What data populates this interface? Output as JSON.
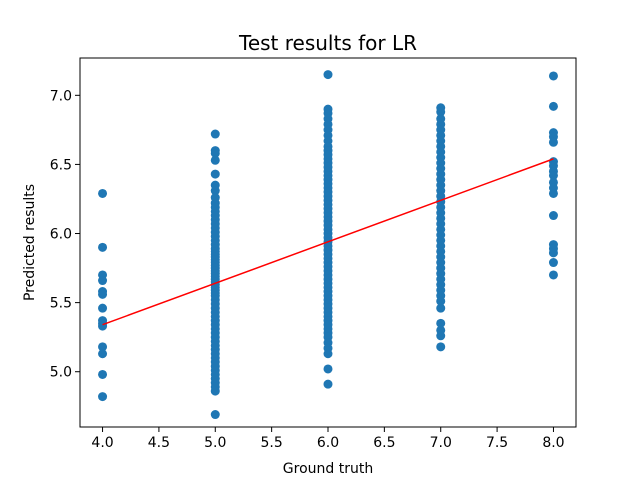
{
  "chart_data": {
    "type": "scatter",
    "title": "Test results for LR",
    "xlabel": "Ground truth",
    "ylabel": "Predicted results",
    "xlim": [
      3.8,
      8.2
    ],
    "ylim": [
      4.6,
      7.27
    ],
    "xticks": [
      "4.0",
      "4.5",
      "5.0",
      "5.5",
      "6.0",
      "6.5",
      "7.0",
      "7.5",
      "8.0"
    ],
    "yticks": [
      "5.0",
      "5.5",
      "6.0",
      "6.5",
      "7.0"
    ],
    "grid": false,
    "colors": {
      "points": "#1f77b4",
      "fit_line": "#ff0000"
    },
    "fit_line": {
      "x": [
        4.0,
        8.0
      ],
      "y": [
        5.34,
        6.54
      ]
    },
    "series": [
      {
        "x": 4.0,
        "y": [
          6.29,
          5.9,
          5.7,
          5.66,
          5.58,
          5.56,
          5.46,
          5.37,
          5.35,
          5.33,
          5.18,
          5.13,
          4.98,
          4.82
        ]
      },
      {
        "x": 5.0,
        "y": [
          6.72,
          6.6,
          6.58,
          6.53,
          6.43,
          6.35,
          6.31,
          6.26,
          6.22,
          6.19,
          6.16,
          6.13,
          6.1,
          6.07,
          6.04,
          6.01,
          5.98,
          5.95,
          5.92,
          5.89,
          5.87,
          5.85,
          5.83,
          5.81,
          5.79,
          5.77,
          5.75,
          5.73,
          5.71,
          5.69,
          5.67,
          5.65,
          5.63,
          5.61,
          5.59,
          5.57,
          5.55,
          5.52,
          5.49,
          5.46,
          5.43,
          5.4,
          5.37,
          5.34,
          5.31,
          5.28,
          5.25,
          5.22,
          5.19,
          5.16,
          5.13,
          5.1,
          5.07,
          5.04,
          5.01,
          4.98,
          4.95,
          4.92,
          4.89,
          4.86,
          4.69
        ]
      },
      {
        "x": 6.0,
        "y": [
          7.15,
          6.9,
          6.87,
          6.83,
          6.79,
          6.75,
          6.71,
          6.67,
          6.63,
          6.6,
          6.57,
          6.54,
          6.51,
          6.48,
          6.45,
          6.42,
          6.39,
          6.36,
          6.33,
          6.3,
          6.27,
          6.24,
          6.21,
          6.18,
          6.15,
          6.12,
          6.09,
          6.06,
          6.03,
          6.0,
          5.97,
          5.94,
          5.91,
          5.88,
          5.85,
          5.82,
          5.79,
          5.76,
          5.73,
          5.7,
          5.67,
          5.64,
          5.61,
          5.58,
          5.55,
          5.52,
          5.49,
          5.46,
          5.43,
          5.4,
          5.37,
          5.34,
          5.31,
          5.28,
          5.25,
          5.21,
          5.17,
          5.13,
          5.02,
          4.91
        ]
      },
      {
        "x": 7.0,
        "y": [
          6.91,
          6.88,
          6.83,
          6.79,
          6.75,
          6.71,
          6.67,
          6.63,
          6.59,
          6.55,
          6.51,
          6.47,
          6.43,
          6.39,
          6.35,
          6.31,
          6.27,
          6.23,
          6.19,
          6.15,
          6.11,
          6.07,
          6.03,
          5.99,
          5.95,
          5.91,
          5.87,
          5.83,
          5.79,
          5.75,
          5.71,
          5.67,
          5.63,
          5.59,
          5.55,
          5.51,
          5.46,
          5.35,
          5.3,
          5.26,
          5.18
        ]
      },
      {
        "x": 8.0,
        "y": [
          7.14,
          6.92,
          6.73,
          6.7,
          6.66,
          6.52,
          6.49,
          6.45,
          6.42,
          6.37,
          6.33,
          6.29,
          6.13,
          5.92,
          5.89,
          5.86,
          5.79,
          5.7
        ]
      }
    ]
  }
}
